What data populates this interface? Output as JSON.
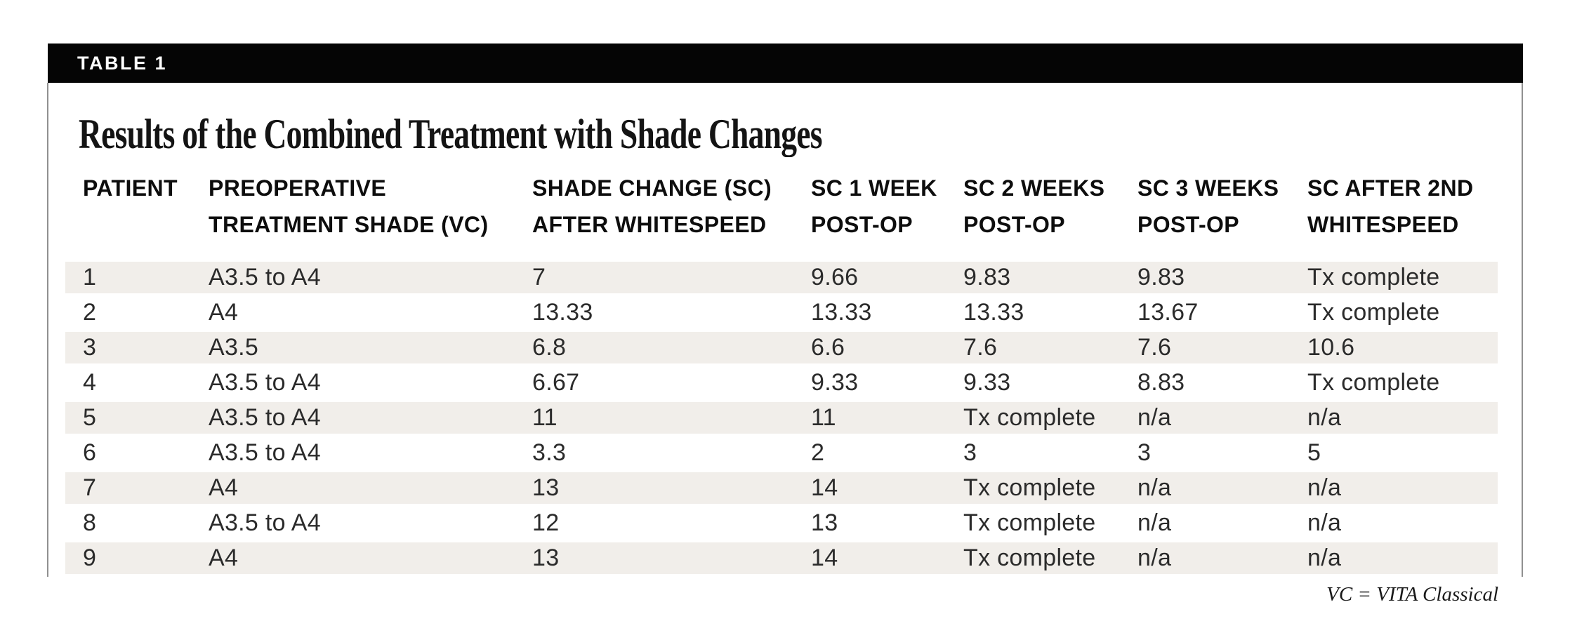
{
  "table_label": "TABLE 1",
  "title": "Results of the Combined Treatment with Shade Changes",
  "footnote": "VC = VITA Classical",
  "colors": {
    "bar_bg": "#050505",
    "bar_text": "#ffffff",
    "row_shade": "#f1eeea",
    "frame_line": "#909090",
    "body_text": "#2b2b2b"
  },
  "table": {
    "columns": [
      {
        "id": "patient",
        "lines": [
          "PATIENT"
        ]
      },
      {
        "id": "preoperative-shade",
        "lines": [
          "PREOPERATIVE",
          "TREATMENT SHADE (VC)"
        ]
      },
      {
        "id": "sc-after-whitespeed",
        "lines": [
          "SHADE CHANGE (SC)",
          "AFTER WHITESPEED"
        ]
      },
      {
        "id": "sc-1-week-post-op",
        "lines": [
          "SC 1 WEEK",
          "POST-OP"
        ]
      },
      {
        "id": "sc-2-weeks-post-op",
        "lines": [
          "SC 2 WEEKS",
          "POST-OP"
        ]
      },
      {
        "id": "sc-3-weeks-post-op",
        "lines": [
          "SC 3 WEEKS",
          "POST-OP"
        ]
      },
      {
        "id": "sc-after-2nd-whitespeed",
        "lines": [
          "SC AFTER 2ND",
          "WHITESPEED"
        ]
      }
    ],
    "rows": [
      [
        "1",
        "A3.5 to A4",
        "7",
        "9.66",
        "9.83",
        "9.83",
        "Tx complete"
      ],
      [
        "2",
        "A4",
        "13.33",
        "13.33",
        "13.33",
        "13.67",
        "Tx complete"
      ],
      [
        "3",
        "A3.5",
        "6.8",
        "6.6",
        "7.6",
        "7.6",
        "10.6"
      ],
      [
        "4",
        "A3.5 to A4",
        "6.67",
        "9.33",
        "9.33",
        "8.83",
        "Tx complete"
      ],
      [
        "5",
        "A3.5 to A4",
        "11",
        "11",
        "Tx complete",
        "n/a",
        "n/a"
      ],
      [
        "6",
        "A3.5 to A4",
        "3.3",
        "2",
        "3",
        "3",
        "5"
      ],
      [
        "7",
        "A4",
        "13",
        "14",
        "Tx complete",
        "n/a",
        "n/a"
      ],
      [
        "8",
        "A3.5 to A4",
        "12",
        "13",
        "Tx complete",
        "n/a",
        "n/a"
      ],
      [
        "9",
        "A4",
        "13",
        "14",
        "Tx complete",
        "n/a",
        "n/a"
      ]
    ]
  }
}
